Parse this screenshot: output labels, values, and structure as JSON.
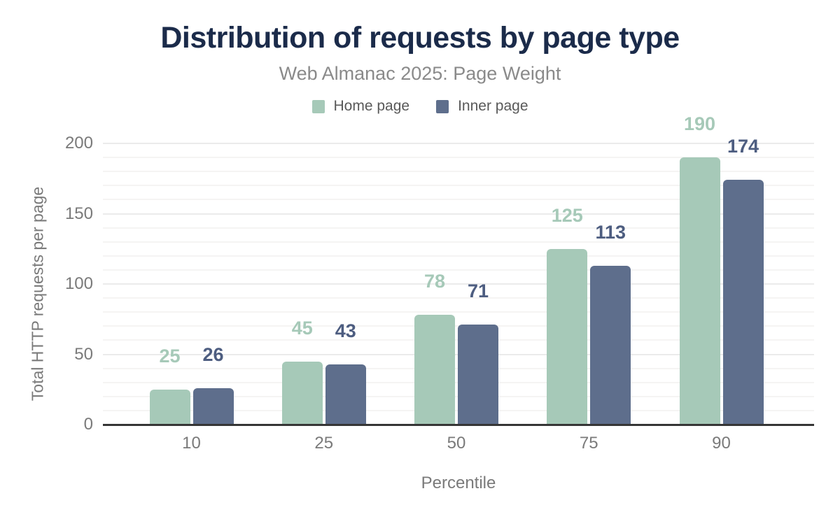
{
  "colors": {
    "background": "#ffffff",
    "title": "#1b2b4a",
    "subtitle": "#8a8a8a",
    "legend_text": "#595959",
    "axis_text": "#7a7a7a",
    "axis_line": "#363636",
    "grid_major": "#ebebeb",
    "grid_minor": "#f5f4f3"
  },
  "chart_data": {
    "type": "bar",
    "title": "Distribution of requests by page type",
    "subtitle": "Web Almanac 2025: Page Weight",
    "xlabel": "Percentile",
    "ylabel": "Total HTTP requests per page",
    "categories": [
      "10",
      "25",
      "50",
      "75",
      "90"
    ],
    "series": [
      {
        "name": "Home page",
        "color": "#a6c9b8",
        "label_color": "#a6c9b8",
        "values": [
          25,
          45,
          78,
          125,
          190
        ]
      },
      {
        "name": "Inner page",
        "color": "#5e6e8c",
        "label_color": "#4d5d80",
        "values": [
          26,
          43,
          71,
          113,
          174
        ]
      }
    ],
    "ylim": [
      0,
      200
    ],
    "yticks": [
      0,
      50,
      100,
      150,
      200
    ],
    "minor_grid_step": 10,
    "grid": true,
    "legend_position": "top",
    "bar_labels": true
  }
}
